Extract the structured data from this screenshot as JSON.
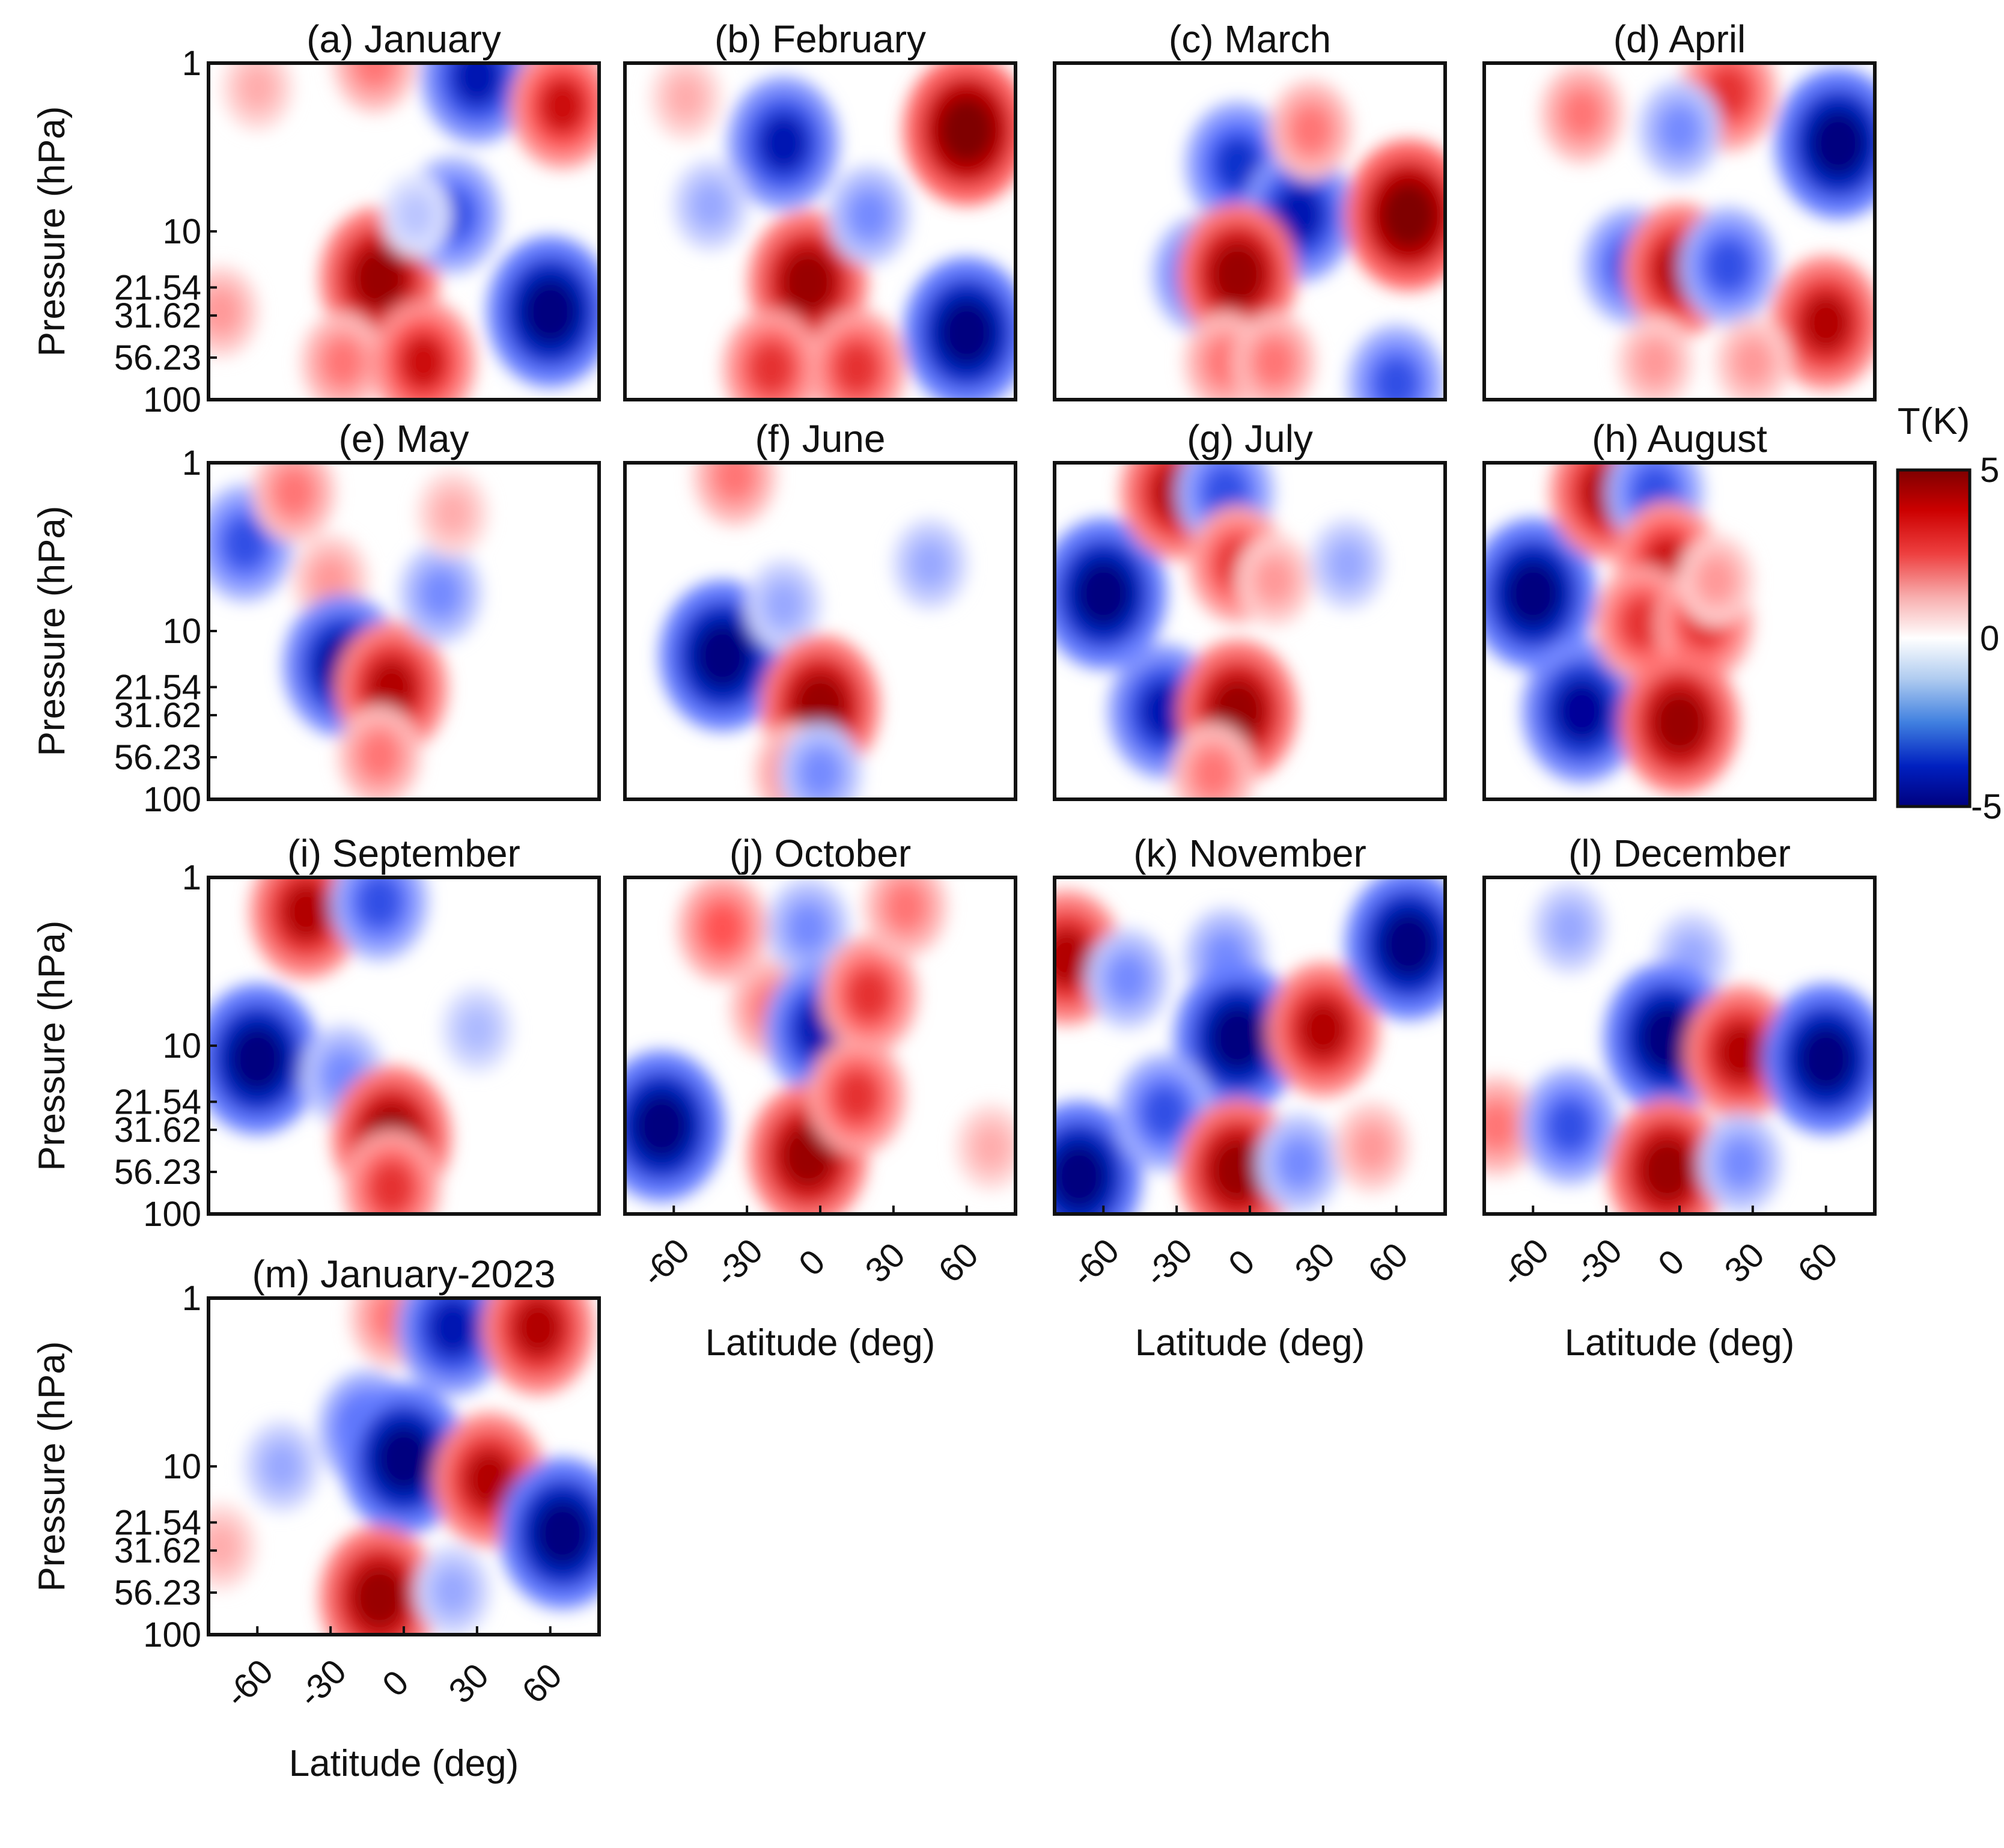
{
  "figure": {
    "panel_titles": [
      "(a) January",
      "(b) February",
      "(c) March",
      "(d) April",
      "(e) May",
      "(f) June",
      "(g) July",
      "(h) August",
      "(i) September",
      "(j) October",
      "(k) November",
      "(l) December",
      "(m) January-2023"
    ],
    "ylabel": "Pressure (hPa)",
    "xlabel": "Latitude (deg)",
    "y_ticks": [
      "1",
      "10",
      "21.54",
      "31.62",
      "56.23",
      "100"
    ],
    "x_ticks": [
      "-60",
      "-30",
      "0",
      "30",
      "60"
    ],
    "colorbar": {
      "label": "T(K)",
      "max_label": "5",
      "mid_label": "0",
      "min_label": "-5"
    }
  },
  "chart_data": {
    "type": "heatmap",
    "colormap": "blue-white-red (diverging)",
    "colors": {
      "min": "#00007f",
      "mid": "#ffffff",
      "max": "#7f0000"
    },
    "value_range": [
      -5,
      5
    ],
    "x_axis": {
      "label": "Latitude (deg)",
      "range": [
        -80,
        80
      ],
      "ticks": [
        -60,
        -30,
        0,
        30,
        60
      ]
    },
    "y_axis": {
      "label": "Pressure (hPa)",
      "scale": "log",
      "reversed": true,
      "range": [
        1,
        100
      ],
      "ticks": [
        1,
        10,
        21.54,
        31.62,
        56.23,
        100
      ]
    },
    "colorbar": {
      "label": "T(K)",
      "range": [
        -5,
        5
      ],
      "tick_labels": [
        "5",
        "0",
        "-5"
      ]
    },
    "panels": [
      {
        "title": "(a) January",
        "features": [
          {
            "lat": -75,
            "p": 30,
            "value": 1.5
          },
          {
            "lat": -60,
            "p": 1.4,
            "value": 1.2
          },
          {
            "lat": -12,
            "p": 1.0,
            "value": 2
          },
          {
            "lat": -10,
            "p": 19,
            "value": 4.5
          },
          {
            "lat": -25,
            "p": 60,
            "value": 2
          },
          {
            "lat": 8,
            "p": 60,
            "value": 3.5
          },
          {
            "lat": 30,
            "p": 1.2,
            "value": -4
          },
          {
            "lat": 20,
            "p": 8,
            "value": -3
          },
          {
            "lat": 60,
            "p": 30,
            "value": -5
          },
          {
            "lat": 65,
            "p": 1.8,
            "value": 3.5
          },
          {
            "lat": 5,
            "p": 8,
            "value": -1
          }
        ]
      },
      {
        "title": "(b) February",
        "features": [
          {
            "lat": -15,
            "p": 3,
            "value": -4
          },
          {
            "lat": -45,
            "p": 7,
            "value": -1.5
          },
          {
            "lat": -55,
            "p": 1.6,
            "value": 1.2
          },
          {
            "lat": 60,
            "p": 2.5,
            "value": 5
          },
          {
            "lat": 60,
            "p": 40,
            "value": -5
          },
          {
            "lat": -5,
            "p": 20,
            "value": 4.5
          },
          {
            "lat": -20,
            "p": 65,
            "value": 3
          },
          {
            "lat": 15,
            "p": 65,
            "value": 3
          },
          {
            "lat": 20,
            "p": 8,
            "value": -2
          }
        ]
      },
      {
        "title": "(c) March",
        "features": [
          {
            "lat": -5,
            "p": 4,
            "value": -3.5
          },
          {
            "lat": 20,
            "p": 8,
            "value": -4
          },
          {
            "lat": -20,
            "p": 18,
            "value": -3
          },
          {
            "lat": -5,
            "p": 18,
            "value": 4.5
          },
          {
            "lat": 25,
            "p": 2.5,
            "value": 2
          },
          {
            "lat": 65,
            "p": 8,
            "value": 5
          },
          {
            "lat": -10,
            "p": 60,
            "value": 2
          },
          {
            "lat": 10,
            "p": 60,
            "value": 2
          },
          {
            "lat": 60,
            "p": 80,
            "value": -3
          }
        ]
      },
      {
        "title": "(d) April",
        "features": [
          {
            "lat": -40,
            "p": 2,
            "value": 2
          },
          {
            "lat": 20,
            "p": 1.5,
            "value": 3
          },
          {
            "lat": 65,
            "p": 3,
            "value": -5
          },
          {
            "lat": -20,
            "p": 16,
            "value": -3
          },
          {
            "lat": 0,
            "p": 17,
            "value": 4
          },
          {
            "lat": 20,
            "p": 16,
            "value": -3
          },
          {
            "lat": 60,
            "p": 35,
            "value": 4
          },
          {
            "lat": 0,
            "p": 2.5,
            "value": -2
          },
          {
            "lat": -10,
            "p": 60,
            "value": 1.5
          },
          {
            "lat": 30,
            "p": 60,
            "value": 1.5
          }
        ]
      },
      {
        "title": "(e) May",
        "features": [
          {
            "lat": -65,
            "p": 3,
            "value": -3
          },
          {
            "lat": -45,
            "p": 1.5,
            "value": 2
          },
          {
            "lat": -30,
            "p": 5,
            "value": 1.5
          },
          {
            "lat": -25,
            "p": 16,
            "value": -4.5
          },
          {
            "lat": -5,
            "p": 22,
            "value": 4
          },
          {
            "lat": 15,
            "p": 6,
            "value": -2
          },
          {
            "lat": 20,
            "p": 2,
            "value": 1.2
          },
          {
            "lat": -10,
            "p": 55,
            "value": 2
          }
        ]
      },
      {
        "title": "(f) June",
        "features": [
          {
            "lat": -40,
            "p": 14,
            "value": -5
          },
          {
            "lat": -35,
            "p": 1.2,
            "value": 2
          },
          {
            "lat": -15,
            "p": 7,
            "value": -1.5
          },
          {
            "lat": 0,
            "p": 28,
            "value": 4.5
          },
          {
            "lat": -10,
            "p": 70,
            "value": 2
          },
          {
            "lat": 0,
            "p": 70,
            "value": -2
          },
          {
            "lat": 45,
            "p": 4,
            "value": -1.5
          }
        ]
      },
      {
        "title": "(g) July",
        "features": [
          {
            "lat": -60,
            "p": 6,
            "value": -5
          },
          {
            "lat": -35,
            "p": 30,
            "value": -4
          },
          {
            "lat": -30,
            "p": 1.5,
            "value": 4
          },
          {
            "lat": -10,
            "p": 1.5,
            "value": -3
          },
          {
            "lat": -5,
            "p": 4,
            "value": 3
          },
          {
            "lat": 10,
            "p": 5,
            "value": 1.5
          },
          {
            "lat": -5,
            "p": 30,
            "value": 4.5
          },
          {
            "lat": -15,
            "p": 70,
            "value": 2
          },
          {
            "lat": 40,
            "p": 4,
            "value": -1.5
          }
        ]
      },
      {
        "title": "(h) August",
        "features": [
          {
            "lat": -60,
            "p": 6,
            "value": -5
          },
          {
            "lat": -40,
            "p": 30,
            "value": -4.5
          },
          {
            "lat": -30,
            "p": 1.5,
            "value": 4
          },
          {
            "lat": -10,
            "p": 1.5,
            "value": -3
          },
          {
            "lat": -5,
            "p": 4,
            "value": 3.5
          },
          {
            "lat": -15,
            "p": 9,
            "value": 3
          },
          {
            "lat": 10,
            "p": 9,
            "value": 3
          },
          {
            "lat": 0,
            "p": 35,
            "value": 4.5
          },
          {
            "lat": 15,
            "p": 5,
            "value": 1.5
          }
        ]
      },
      {
        "title": "(i) September",
        "features": [
          {
            "lat": -60,
            "p": 12,
            "value": -5
          },
          {
            "lat": -40,
            "p": 1.6,
            "value": 4
          },
          {
            "lat": -10,
            "p": 1.4,
            "value": -3
          },
          {
            "lat": -25,
            "p": 15,
            "value": -2
          },
          {
            "lat": -5,
            "p": 35,
            "value": 4.5
          },
          {
            "lat": -5,
            "p": 70,
            "value": 3
          },
          {
            "lat": 30,
            "p": 8,
            "value": -1.2
          }
        ]
      },
      {
        "title": "(j) October",
        "features": [
          {
            "lat": -65,
            "p": 30,
            "value": -5
          },
          {
            "lat": -40,
            "p": 2,
            "value": 2.5
          },
          {
            "lat": -20,
            "p": 6,
            "value": 2
          },
          {
            "lat": -5,
            "p": 2,
            "value": -2
          },
          {
            "lat": 0,
            "p": 8,
            "value": -4
          },
          {
            "lat": 20,
            "p": 5,
            "value": 3
          },
          {
            "lat": 35,
            "p": 1.5,
            "value": 2
          },
          {
            "lat": -5,
            "p": 45,
            "value": 4.5
          },
          {
            "lat": 15,
            "p": 20,
            "value": 3
          },
          {
            "lat": 70,
            "p": 40,
            "value": 1.2
          }
        ]
      },
      {
        "title": "(k) November",
        "features": [
          {
            "lat": -75,
            "p": 3,
            "value": 4
          },
          {
            "lat": -50,
            "p": 4,
            "value": -2
          },
          {
            "lat": -10,
            "p": 3,
            "value": -2
          },
          {
            "lat": -5,
            "p": 9,
            "value": -5
          },
          {
            "lat": 30,
            "p": 8,
            "value": 4
          },
          {
            "lat": 65,
            "p": 2.5,
            "value": -5
          },
          {
            "lat": -70,
            "p": 60,
            "value": -5
          },
          {
            "lat": -35,
            "p": 25,
            "value": -3
          },
          {
            "lat": -5,
            "p": 55,
            "value": 4.5
          },
          {
            "lat": 20,
            "p": 50,
            "value": -2
          },
          {
            "lat": 50,
            "p": 40,
            "value": 1.5
          }
        ]
      },
      {
        "title": "(l) December",
        "features": [
          {
            "lat": -45,
            "p": 2,
            "value": -1.5
          },
          {
            "lat": 5,
            "p": 3,
            "value": -1.5
          },
          {
            "lat": -5,
            "p": 9,
            "value": -5
          },
          {
            "lat": 25,
            "p": 11,
            "value": 4
          },
          {
            "lat": 60,
            "p": 12,
            "value": -5
          },
          {
            "lat": -75,
            "p": 30,
            "value": 2
          },
          {
            "lat": -45,
            "p": 30,
            "value": -3
          },
          {
            "lat": -5,
            "p": 55,
            "value": 4.5
          },
          {
            "lat": 25,
            "p": 50,
            "value": -2
          }
        ]
      },
      {
        "title": "(m) January-2023",
        "features": [
          {
            "lat": -5,
            "p": 1.3,
            "value": 2
          },
          {
            "lat": 20,
            "p": 1.5,
            "value": -4
          },
          {
            "lat": 55,
            "p": 1.5,
            "value": 4
          },
          {
            "lat": -15,
            "p": 6,
            "value": -3
          },
          {
            "lat": 0,
            "p": 9,
            "value": -5
          },
          {
            "lat": 35,
            "p": 12,
            "value": 4
          },
          {
            "lat": 65,
            "p": 25,
            "value": -5
          },
          {
            "lat": -50,
            "p": 10,
            "value": -1.5
          },
          {
            "lat": -75,
            "p": 30,
            "value": 1.2
          },
          {
            "lat": -10,
            "p": 60,
            "value": 4.5
          },
          {
            "lat": 20,
            "p": 55,
            "value": -1.5
          }
        ]
      }
    ]
  }
}
